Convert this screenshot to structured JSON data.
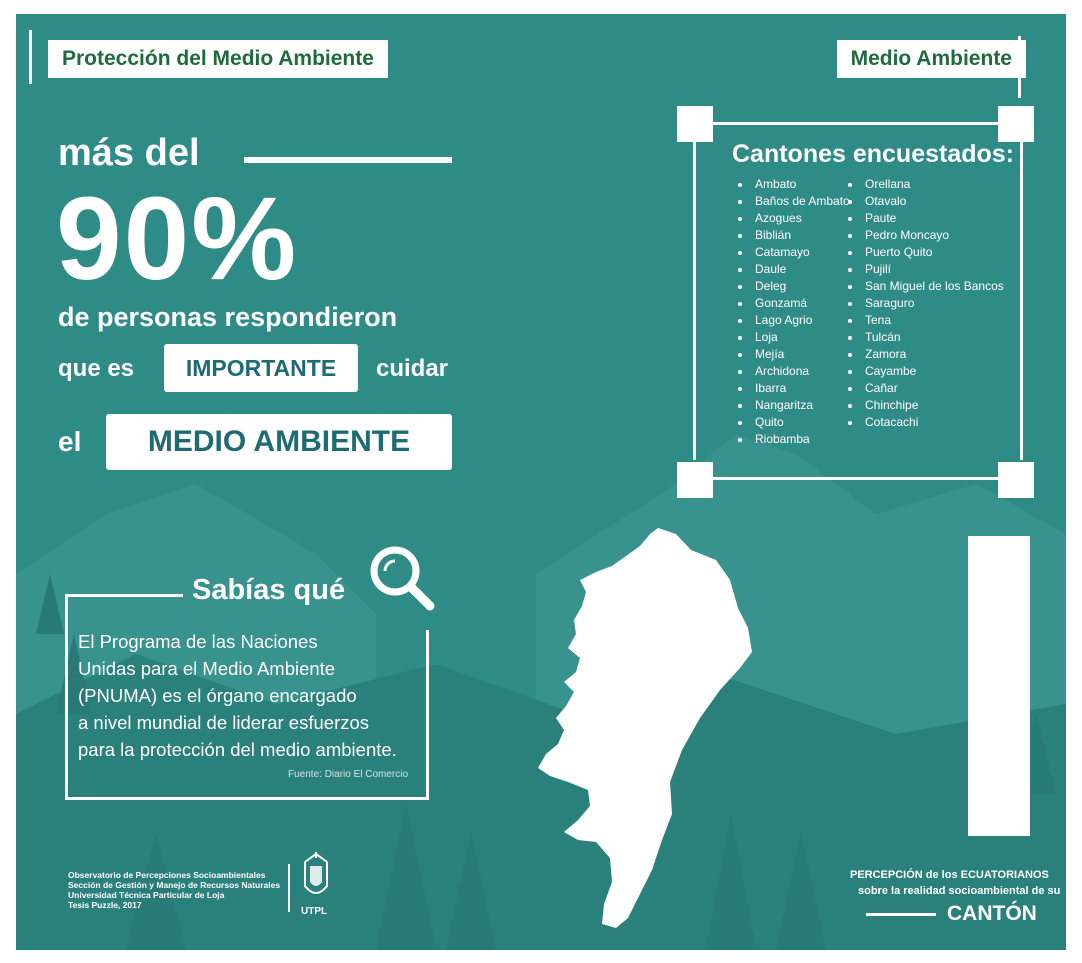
{
  "header": {
    "left_tag": "Protección del Medio Ambiente",
    "right_tag": "Medio Ambiente"
  },
  "headline": {
    "line_mas": "más del",
    "percent": "90%",
    "line1": "de personas respondieron",
    "line2_start": "que es",
    "highlight1": "IMPORTANTE",
    "line2_end": "cuidar",
    "line3_start": "el",
    "highlight2": "MEDIO AMBIENTE"
  },
  "cantones": {
    "title": "Cantones encuestados:",
    "col1": [
      "Ambato",
      "Baños de Ambato",
      "Azogues",
      "Biblián",
      "Catamayo",
      "Daule",
      "Deleg",
      "Gonzamá",
      "Lago Agrio",
      "Loja",
      "Mejía",
      "Archidona",
      "Ibarra",
      "Nangaritza",
      "Quito",
      "Riobamba"
    ],
    "col2": [
      "Orellana",
      "Otavalo",
      "Paute",
      "Pedro Moncayo",
      "Puerto Quito",
      "Pujilí",
      "San Miguel de los Bancos",
      "Saraguro",
      "Tena",
      "Tulcán",
      "Zamora",
      "Cayambe",
      "Cañar",
      "Chinchipe",
      "Cotacachi"
    ]
  },
  "sabias": {
    "title": "Sabías qué",
    "lines": [
      "El Programa de las Naciones",
      "Unidas para el Medio Ambiente",
      "(PNUMA) es el órgano encargado",
      "a nivel mundial de liderar esfuerzos",
      "para la protección del medio ambiente."
    ],
    "source": "Fuente: Diario El Comercio"
  },
  "footer": {
    "org_lines": [
      "Observatorio de Percepciones Socioambientales",
      "Sección de Gestión y Manejo de Recursos Naturales",
      "Universidad Técnica Particular de Loja",
      "Tesis Puzzle, 2017"
    ],
    "utpl": "UTPL",
    "brand_line1": "PERCEPCIÓN de los ECUATORIANOS",
    "brand_line2": "sobre la realidad socioambiental de su",
    "brand_line3": "CANTÓN"
  },
  "colors": {
    "teal": "#2f8b86",
    "dark_teal_text": "#1e6b74",
    "green_text": "#1f6b3f",
    "white": "#ffffff"
  },
  "icons": [
    "magnifier-icon",
    "ecuador-map",
    "utpl-seal-icon"
  ]
}
